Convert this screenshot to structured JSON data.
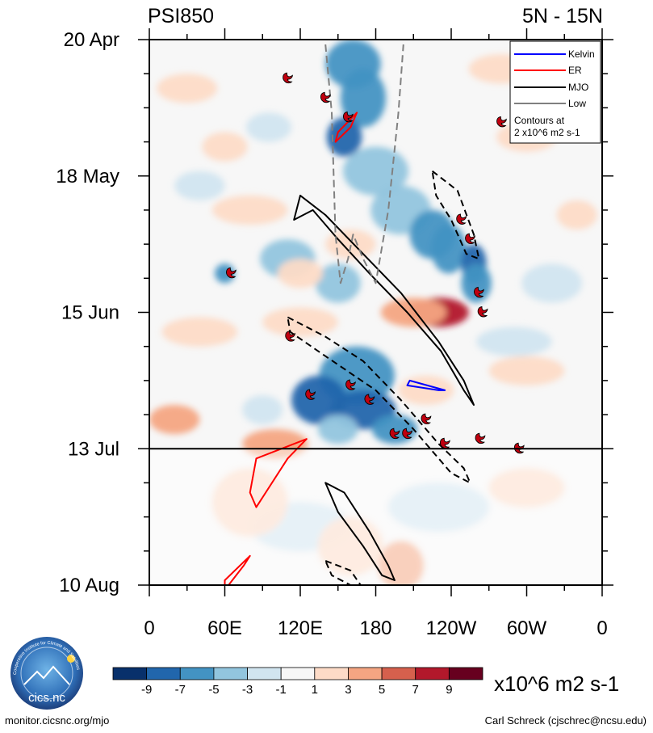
{
  "chart_data": {
    "type": "heatmap",
    "title_left": "PSI850",
    "title_right": "5N - 15N",
    "variable": "850 hPa streamfunction anomaly",
    "x_axis": {
      "range": [
        0,
        360
      ],
      "ticks": [
        {
          "lon": 0,
          "label": "0"
        },
        {
          "lon": 60,
          "label": "60E"
        },
        {
          "lon": 120,
          "label": "120E"
        },
        {
          "lon": 180,
          "label": "180"
        },
        {
          "lon": 240,
          "label": "120W"
        },
        {
          "lon": 300,
          "label": "60W"
        },
        {
          "lon": 360,
          "label": "0"
        }
      ]
    },
    "y_axis": {
      "range_days": [
        0,
        112
      ],
      "ticks": [
        {
          "day": 0,
          "label": "20 Apr"
        },
        {
          "day": 28,
          "label": "18 May"
        },
        {
          "day": 56,
          "label": "15 Jun"
        },
        {
          "day": 84,
          "label": "13 Jul"
        },
        {
          "day": 112,
          "label": "10 Aug"
        }
      ]
    },
    "forecast_start_day": 84,
    "colorbar": {
      "units": "x10^6 m2 s-1",
      "labels": [
        "-9",
        "-7",
        "-5",
        "-3",
        "-1",
        "1",
        "3",
        "5",
        "7",
        "9"
      ],
      "colors": [
        "#08306b",
        "#2166ac",
        "#4393c3",
        "#92c5de",
        "#d1e5f0",
        "#f7f7f7",
        "#fddbc7",
        "#f4a582",
        "#d6604d",
        "#b2182b",
        "#67001f"
      ]
    },
    "legend": {
      "items": [
        {
          "label": "Kelvin",
          "color": "#0000ff"
        },
        {
          "label": "ER",
          "color": "#ff0000"
        },
        {
          "label": "MJO",
          "color": "#000000"
        },
        {
          "label": "Low",
          "color": "#808080"
        }
      ],
      "note_line1": "Contours at",
      "note_line2": "2 x10^6 m2 s-1"
    },
    "anomaly_blobs": [
      {
        "lon": 162,
        "day": 5,
        "rx": 22,
        "ry": 5,
        "v": -6
      },
      {
        "lon": 170,
        "day": 12,
        "rx": 18,
        "ry": 6,
        "v": -5
      },
      {
        "lon": 155,
        "day": 20,
        "rx": 14,
        "ry": 4,
        "v": -7
      },
      {
        "lon": 180,
        "day": 27,
        "rx": 26,
        "ry": 5,
        "v": -4
      },
      {
        "lon": 200,
        "day": 35,
        "rx": 24,
        "ry": 5,
        "v": -3
      },
      {
        "lon": 225,
        "day": 40,
        "rx": 18,
        "ry": 5,
        "v": -5
      },
      {
        "lon": 238,
        "day": 43,
        "rx": 14,
        "ry": 5,
        "v": -6
      },
      {
        "lon": 258,
        "day": 46,
        "rx": 10,
        "ry": 4,
        "v": -7
      },
      {
        "lon": 260,
        "day": 50,
        "rx": 12,
        "ry": 4,
        "v": -5
      },
      {
        "lon": 150,
        "day": 50,
        "rx": 18,
        "ry": 4,
        "v": -3
      },
      {
        "lon": 110,
        "day": 45,
        "rx": 22,
        "ry": 4,
        "v": -3
      },
      {
        "lon": 60,
        "day": 48,
        "rx": 8,
        "ry": 2,
        "v": -5
      },
      {
        "lon": 165,
        "day": 69,
        "rx": 30,
        "ry": 6,
        "v": -5
      },
      {
        "lon": 135,
        "day": 74,
        "rx": 22,
        "ry": 5,
        "v": -7
      },
      {
        "lon": 170,
        "day": 76,
        "rx": 26,
        "ry": 4,
        "v": -7
      },
      {
        "lon": 195,
        "day": 80,
        "rx": 18,
        "ry": 3,
        "v": -6
      },
      {
        "lon": 150,
        "day": 80,
        "rx": 16,
        "ry": 3,
        "v": -4
      },
      {
        "lon": 90,
        "day": 76,
        "rx": 16,
        "ry": 3,
        "v": -2
      },
      {
        "lon": 290,
        "day": 62,
        "rx": 30,
        "ry": 3,
        "v": -2
      },
      {
        "lon": 320,
        "day": 50,
        "rx": 24,
        "ry": 4,
        "v": -2
      },
      {
        "lon": 230,
        "day": 96,
        "rx": 40,
        "ry": 5,
        "v": -1
      },
      {
        "lon": 120,
        "day": 100,
        "rx": 40,
        "ry": 5,
        "v": -1
      },
      {
        "lon": 40,
        "day": 30,
        "rx": 20,
        "ry": 3,
        "v": -2
      },
      {
        "lon": 95,
        "day": 18,
        "rx": 18,
        "ry": 3,
        "v": -2
      },
      {
        "lon": 230,
        "day": 56,
        "rx": 24,
        "ry": 3,
        "v": 8
      },
      {
        "lon": 210,
        "day": 56,
        "rx": 26,
        "ry": 3,
        "v": 4
      },
      {
        "lon": 160,
        "day": 42,
        "rx": 20,
        "ry": 3,
        "v": 3
      },
      {
        "lon": 120,
        "day": 48,
        "rx": 18,
        "ry": 3,
        "v": 3
      },
      {
        "lon": 80,
        "day": 35,
        "rx": 30,
        "ry": 3,
        "v": 3
      },
      {
        "lon": 30,
        "day": 10,
        "rx": 24,
        "ry": 3,
        "v": 3
      },
      {
        "lon": 280,
        "day": 6,
        "rx": 26,
        "ry": 3,
        "v": 3
      },
      {
        "lon": 300,
        "day": 20,
        "rx": 24,
        "ry": 3,
        "v": 2
      },
      {
        "lon": 120,
        "day": 58,
        "rx": 30,
        "ry": 3,
        "v": 3
      },
      {
        "lon": 40,
        "day": 60,
        "rx": 30,
        "ry": 3,
        "v": 2
      },
      {
        "lon": 300,
        "day": 68,
        "rx": 30,
        "ry": 3,
        "v": 3
      },
      {
        "lon": 220,
        "day": 72,
        "rx": 22,
        "ry": 3,
        "v": 3
      },
      {
        "lon": 20,
        "day": 78,
        "rx": 20,
        "ry": 3,
        "v": 5
      },
      {
        "lon": 100,
        "day": 83,
        "rx": 26,
        "ry": 3,
        "v": 4
      },
      {
        "lon": 200,
        "day": 108,
        "rx": 18,
        "ry": 5,
        "v": 4
      },
      {
        "lon": 160,
        "day": 104,
        "rx": 26,
        "ry": 6,
        "v": 2
      },
      {
        "lon": 80,
        "day": 95,
        "rx": 30,
        "ry": 7,
        "v": 2
      },
      {
        "lon": 300,
        "day": 92,
        "rx": 30,
        "ry": 4,
        "v": 2
      },
      {
        "lon": 340,
        "day": 36,
        "rx": 16,
        "ry": 3,
        "v": 3
      },
      {
        "lon": 60,
        "day": 22,
        "rx": 18,
        "ry": 3,
        "v": 2
      }
    ],
    "contours": {
      "mjo_positive": [
        [
          [
            115,
            37
          ],
          [
            130,
            35
          ],
          [
            150,
            41
          ],
          [
            175,
            48
          ],
          [
            205,
            56
          ],
          [
            232,
            64
          ],
          [
            250,
            72
          ],
          [
            258,
            75
          ],
          [
            250,
            70
          ],
          [
            230,
            62
          ],
          [
            200,
            52
          ],
          [
            170,
            44
          ],
          [
            140,
            36
          ],
          [
            120,
            32
          ]
        ],
        [
          [
            140,
            91
          ],
          [
            155,
            93
          ],
          [
            175,
            101
          ],
          [
            190,
            108
          ],
          [
            195,
            111
          ],
          [
            185,
            110
          ],
          [
            170,
            104
          ],
          [
            150,
            97
          ]
        ]
      ],
      "mjo_negative": [
        [
          [
            225,
            27
          ],
          [
            245,
            31
          ],
          [
            258,
            40
          ],
          [
            262,
            45
          ],
          [
            252,
            44
          ],
          [
            240,
            37
          ],
          [
            228,
            32
          ]
        ],
        [
          [
            110,
            57
          ],
          [
            140,
            61
          ],
          [
            170,
            66
          ],
          [
            200,
            74
          ],
          [
            230,
            83
          ],
          [
            250,
            88
          ],
          [
            255,
            91
          ],
          [
            240,
            89
          ],
          [
            210,
            80
          ],
          [
            180,
            72
          ],
          [
            140,
            65
          ],
          [
            112,
            60
          ]
        ],
        [
          [
            140,
            107
          ],
          [
            160,
            109
          ],
          [
            168,
            112
          ],
          [
            160,
            112
          ],
          [
            145,
            110
          ]
        ]
      ],
      "er": [
        [
          [
            150,
            19
          ],
          [
            165,
            15
          ],
          [
            160,
            18
          ],
          [
            148,
            21
          ]
        ],
        [
          [
            85,
            86
          ],
          [
            125,
            82
          ],
          [
            110,
            86
          ],
          [
            85,
            96
          ],
          [
            80,
            93
          ]
        ],
        [
          [
            60,
            111
          ],
          [
            80,
            106
          ],
          [
            75,
            108
          ],
          [
            60,
            113
          ]
        ]
      ],
      "kelvin": [
        [
          [
            207,
            70
          ],
          [
            235,
            72
          ],
          [
            230,
            72
          ],
          [
            205,
            71
          ]
        ]
      ],
      "low": [
        [
          [
            140,
            1
          ],
          [
            145,
            15
          ],
          [
            148,
            40
          ],
          [
            152,
            50
          ],
          [
            158,
            45
          ],
          [
            162,
            40
          ],
          [
            170,
            45
          ],
          [
            180,
            50
          ],
          [
            190,
            35
          ],
          [
            198,
            15
          ],
          [
            202,
            1
          ]
        ]
      ]
    },
    "tc_markers": [
      {
        "lon": 110,
        "day": 8
      },
      {
        "lon": 140,
        "day": 12
      },
      {
        "lon": 158,
        "day": 16
      },
      {
        "lon": 280,
        "day": 17
      },
      {
        "lon": 248,
        "day": 37
      },
      {
        "lon": 255,
        "day": 41
      },
      {
        "lon": 65,
        "day": 48
      },
      {
        "lon": 262,
        "day": 52
      },
      {
        "lon": 265,
        "day": 56
      },
      {
        "lon": 112,
        "day": 61
      },
      {
        "lon": 160,
        "day": 71
      },
      {
        "lon": 128,
        "day": 73
      },
      {
        "lon": 175,
        "day": 74
      },
      {
        "lon": 220,
        "day": 78
      },
      {
        "lon": 195,
        "day": 81
      },
      {
        "lon": 205,
        "day": 81
      },
      {
        "lon": 235,
        "day": 83
      },
      {
        "lon": 263,
        "day": 82
      },
      {
        "lon": 294,
        "day": 84
      }
    ]
  },
  "footer": {
    "left": "monitor.cicsnc.org/mjo",
    "right": "Carl Schreck (cjschrec@ncsu.edu)"
  },
  "logo": {
    "label": "cics.nc",
    "ring_text": "Cooperative Institute for Climate and Satellites"
  }
}
